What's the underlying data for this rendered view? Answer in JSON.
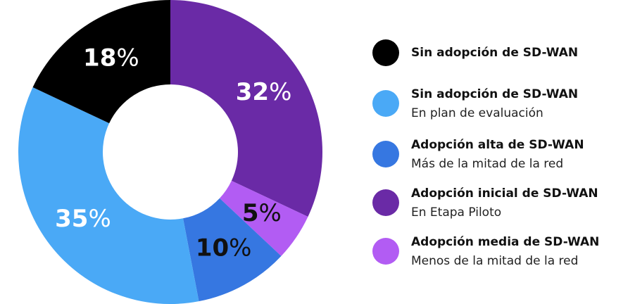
{
  "chart_data": {
    "type": "donut",
    "values": [
      32,
      5,
      10,
      35,
      18
    ],
    "value_labels": [
      "32%",
      "5%",
      "10%",
      "35%",
      "18%"
    ],
    "colors": [
      "#6a2aa6",
      "#b25cf3",
      "#3677e1",
      "#4aa9f6",
      "#000000"
    ],
    "label_colors": [
      "#ffffff",
      "#111111",
      "#111111",
      "#ffffff",
      "#ffffff"
    ],
    "legend": [
      {
        "title": "Sin adopción de SD-WAN",
        "color": "#000000"
      },
      {
        "title": "Sin adopción de SD-WAN",
        "subtitle": "En plan de evaluación",
        "color": "#4aa9f6"
      },
      {
        "title": "Adopción alta de SD-WAN",
        "subtitle": "Más de la mitad de la red",
        "color": "#3677e1"
      },
      {
        "title": "Adopción inicial de SD-WAN",
        "subtitle": "En Etapa Piloto",
        "color": "#6a2aa6"
      },
      {
        "title": "Adopción media de SD-WAN",
        "subtitle": "Menos de la mitad de la red",
        "color": "#b25cf3"
      }
    ]
  }
}
